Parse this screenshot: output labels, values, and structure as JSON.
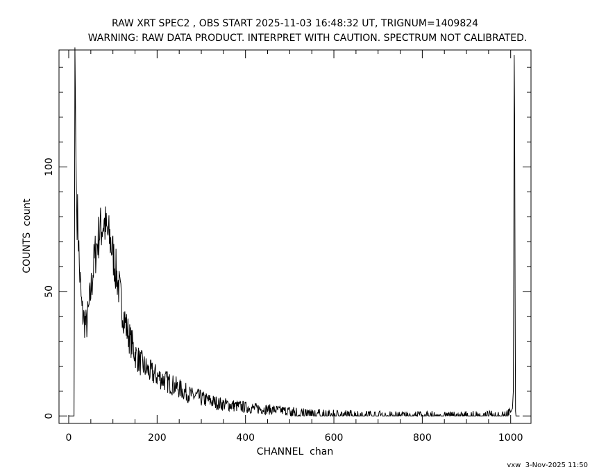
{
  "chart_data": {
    "type": "line",
    "title": "RAW XRT SPEC2 , OBS START 2025-11-03 16:48:32 UT, TRIGNUM=1409824",
    "subtitle": "WARNING: RAW DATA PRODUCT. INTERPRET WITH CAUTION. SPECTRUM NOT CALIBRATED.",
    "xlabel": "CHANNEL  chan",
    "ylabel": "COUNTS  count",
    "footer": "vxw  3-Nov-2025 11:50",
    "xlim": [
      -22,
      1046
    ],
    "ylim": [
      -3,
      147
    ],
    "xticks": [
      0,
      200,
      400,
      600,
      800,
      1000
    ],
    "xtick_labels": [
      "0",
      "200",
      "400",
      "600",
      "800",
      "1000"
    ],
    "yticks": [
      0,
      50,
      100
    ],
    "ytick_labels": [
      "0",
      "50",
      "100"
    ],
    "grid": false,
    "color": "#000000",
    "series": [
      {
        "name": "",
        "x": [
          0,
          12,
          13,
          14,
          15,
          16,
          17,
          18,
          20,
          22,
          24,
          27,
          30,
          33,
          36,
          40,
          45,
          50,
          55,
          60,
          65,
          70,
          75,
          80,
          85,
          90,
          95,
          100,
          105,
          110,
          115,
          120,
          125,
          130,
          135,
          140,
          145,
          150,
          160,
          170,
          180,
          190,
          200,
          210,
          220,
          230,
          240,
          250,
          260,
          270,
          280,
          290,
          300,
          320,
          340,
          360,
          380,
          400,
          420,
          440,
          460,
          480,
          500,
          520,
          540,
          560,
          580,
          600,
          620,
          640,
          660,
          680,
          700,
          720,
          740,
          760,
          780,
          800,
          820,
          840,
          860,
          880,
          900,
          920,
          940,
          960,
          980,
          1000,
          1004,
          1006,
          1007,
          1008,
          1009,
          1010,
          1011,
          1012,
          1015,
          1020
        ],
        "values": [
          0,
          0,
          60,
          148,
          130,
          110,
          95,
          83,
          80,
          72,
          60,
          50,
          42,
          40,
          38,
          36,
          42,
          50,
          58,
          65,
          70,
          74,
          76,
          78,
          74,
          72,
          70,
          65,
          60,
          55,
          50,
          44,
          40,
          36,
          33,
          30,
          28,
          25,
          22,
          20,
          18,
          17,
          16,
          15,
          14,
          13,
          12,
          11,
          10,
          9,
          8,
          8,
          7,
          6,
          5,
          4.5,
          4,
          3.5,
          3,
          2.8,
          2.5,
          2.2,
          2,
          1.8,
          1.5,
          1.3,
          1.2,
          1,
          1,
          1,
          0.8,
          0.8,
          0.8,
          0.8,
          0.7,
          0.7,
          0.7,
          0.7,
          0.7,
          0.7,
          0.7,
          0.7,
          0.7,
          0.7,
          0.7,
          0.8,
          1,
          1.5,
          3,
          10,
          60,
          145,
          120,
          50,
          2,
          0,
          0,
          0
        ]
      }
    ]
  }
}
